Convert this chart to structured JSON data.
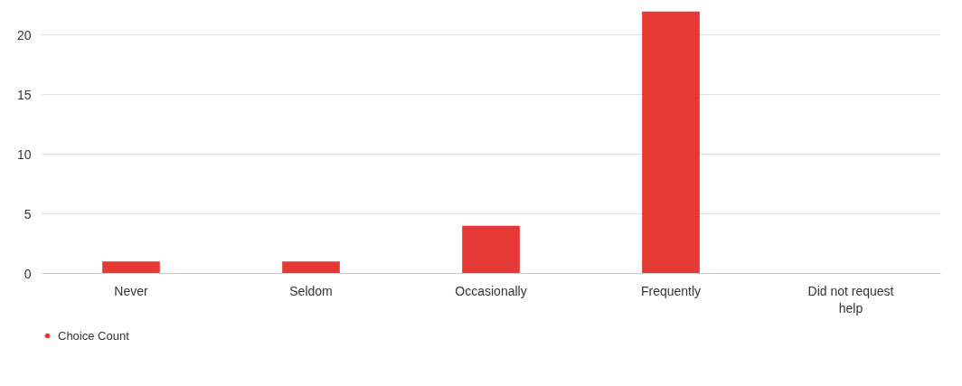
{
  "chart_data": {
    "type": "bar",
    "categories": [
      "Never",
      "Seldom",
      "Occasionally",
      "Frequently",
      "Did not request help"
    ],
    "series": [
      {
        "name": "Choice Count",
        "color": "#e53935",
        "values": [
          1,
          1,
          4,
          22,
          0
        ]
      }
    ],
    "ylim": [
      0,
      22
    ],
    "yticks": [
      0,
      5,
      10,
      15,
      20
    ],
    "grid": "y",
    "legend": "bottom left"
  }
}
